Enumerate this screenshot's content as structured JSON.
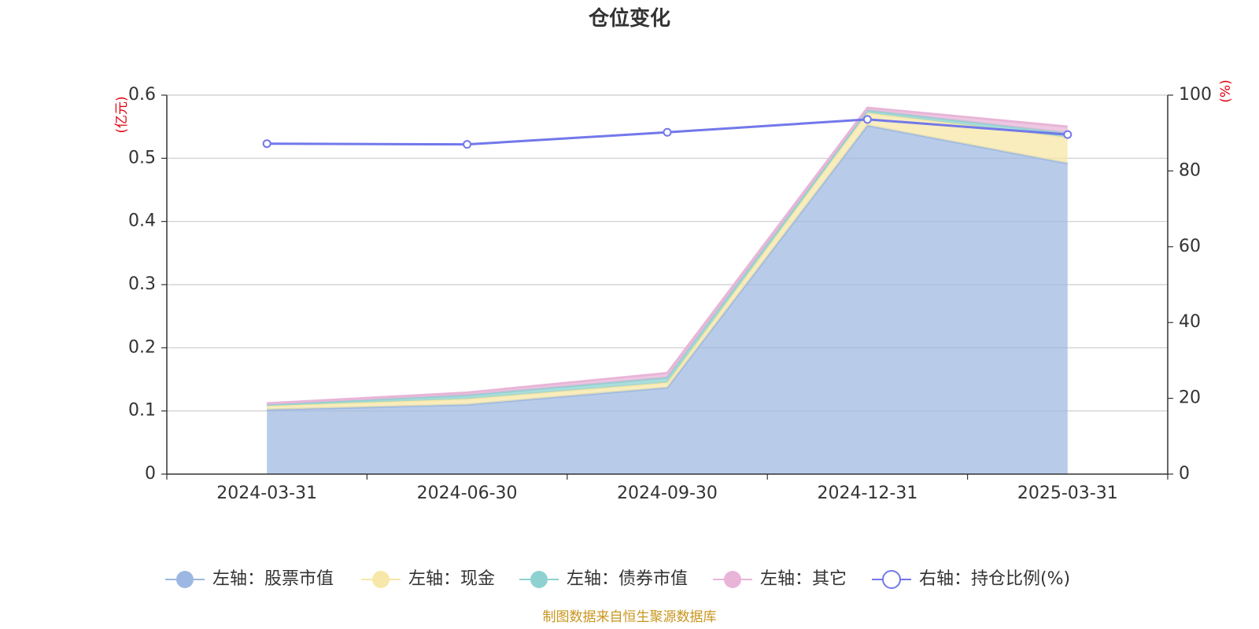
{
  "chart_data": {
    "type": "area",
    "title": "仓位变化",
    "left_axis_unit": "(亿元)",
    "right_axis_unit": "(%)",
    "categories": [
      "2024-03-31",
      "2024-06-30",
      "2024-09-30",
      "2024-12-31",
      "2025-03-31"
    ],
    "left_axis": {
      "min": 0,
      "max": 0.6,
      "ticks": [
        "0",
        "0.1",
        "0.2",
        "0.3",
        "0.4",
        "0.5",
        "0.6"
      ]
    },
    "right_axis": {
      "min": 0,
      "max": 100,
      "ticks": [
        "0",
        "20",
        "40",
        "60",
        "80",
        "100"
      ]
    },
    "stacked_series": [
      {
        "name": "左轴：股票市值",
        "values": [
          0.102,
          0.11,
          0.137,
          0.552,
          0.492
        ],
        "color": "#9cb8e2"
      },
      {
        "name": "左轴：现金",
        "values": [
          0.006,
          0.009,
          0.008,
          0.02,
          0.041
        ],
        "color": "#f7e7a8"
      },
      {
        "name": "左轴：债券市值",
        "values": [
          0.002,
          0.006,
          0.008,
          0.004,
          0.007
        ],
        "color": "#8fd1d1"
      },
      {
        "name": "左轴：其它",
        "values": [
          0.002,
          0.004,
          0.007,
          0.004,
          0.01
        ],
        "color": "#e8b5d8"
      }
    ],
    "line_series": {
      "name": "右轴：持仓比例(%)",
      "values": [
        87.2,
        87.0,
        90.2,
        93.6,
        89.6
      ],
      "color": "#7278ea"
    },
    "grid": true,
    "legend_position": "bottom"
  },
  "source_note": "制图数据来自恒生聚源数据库"
}
